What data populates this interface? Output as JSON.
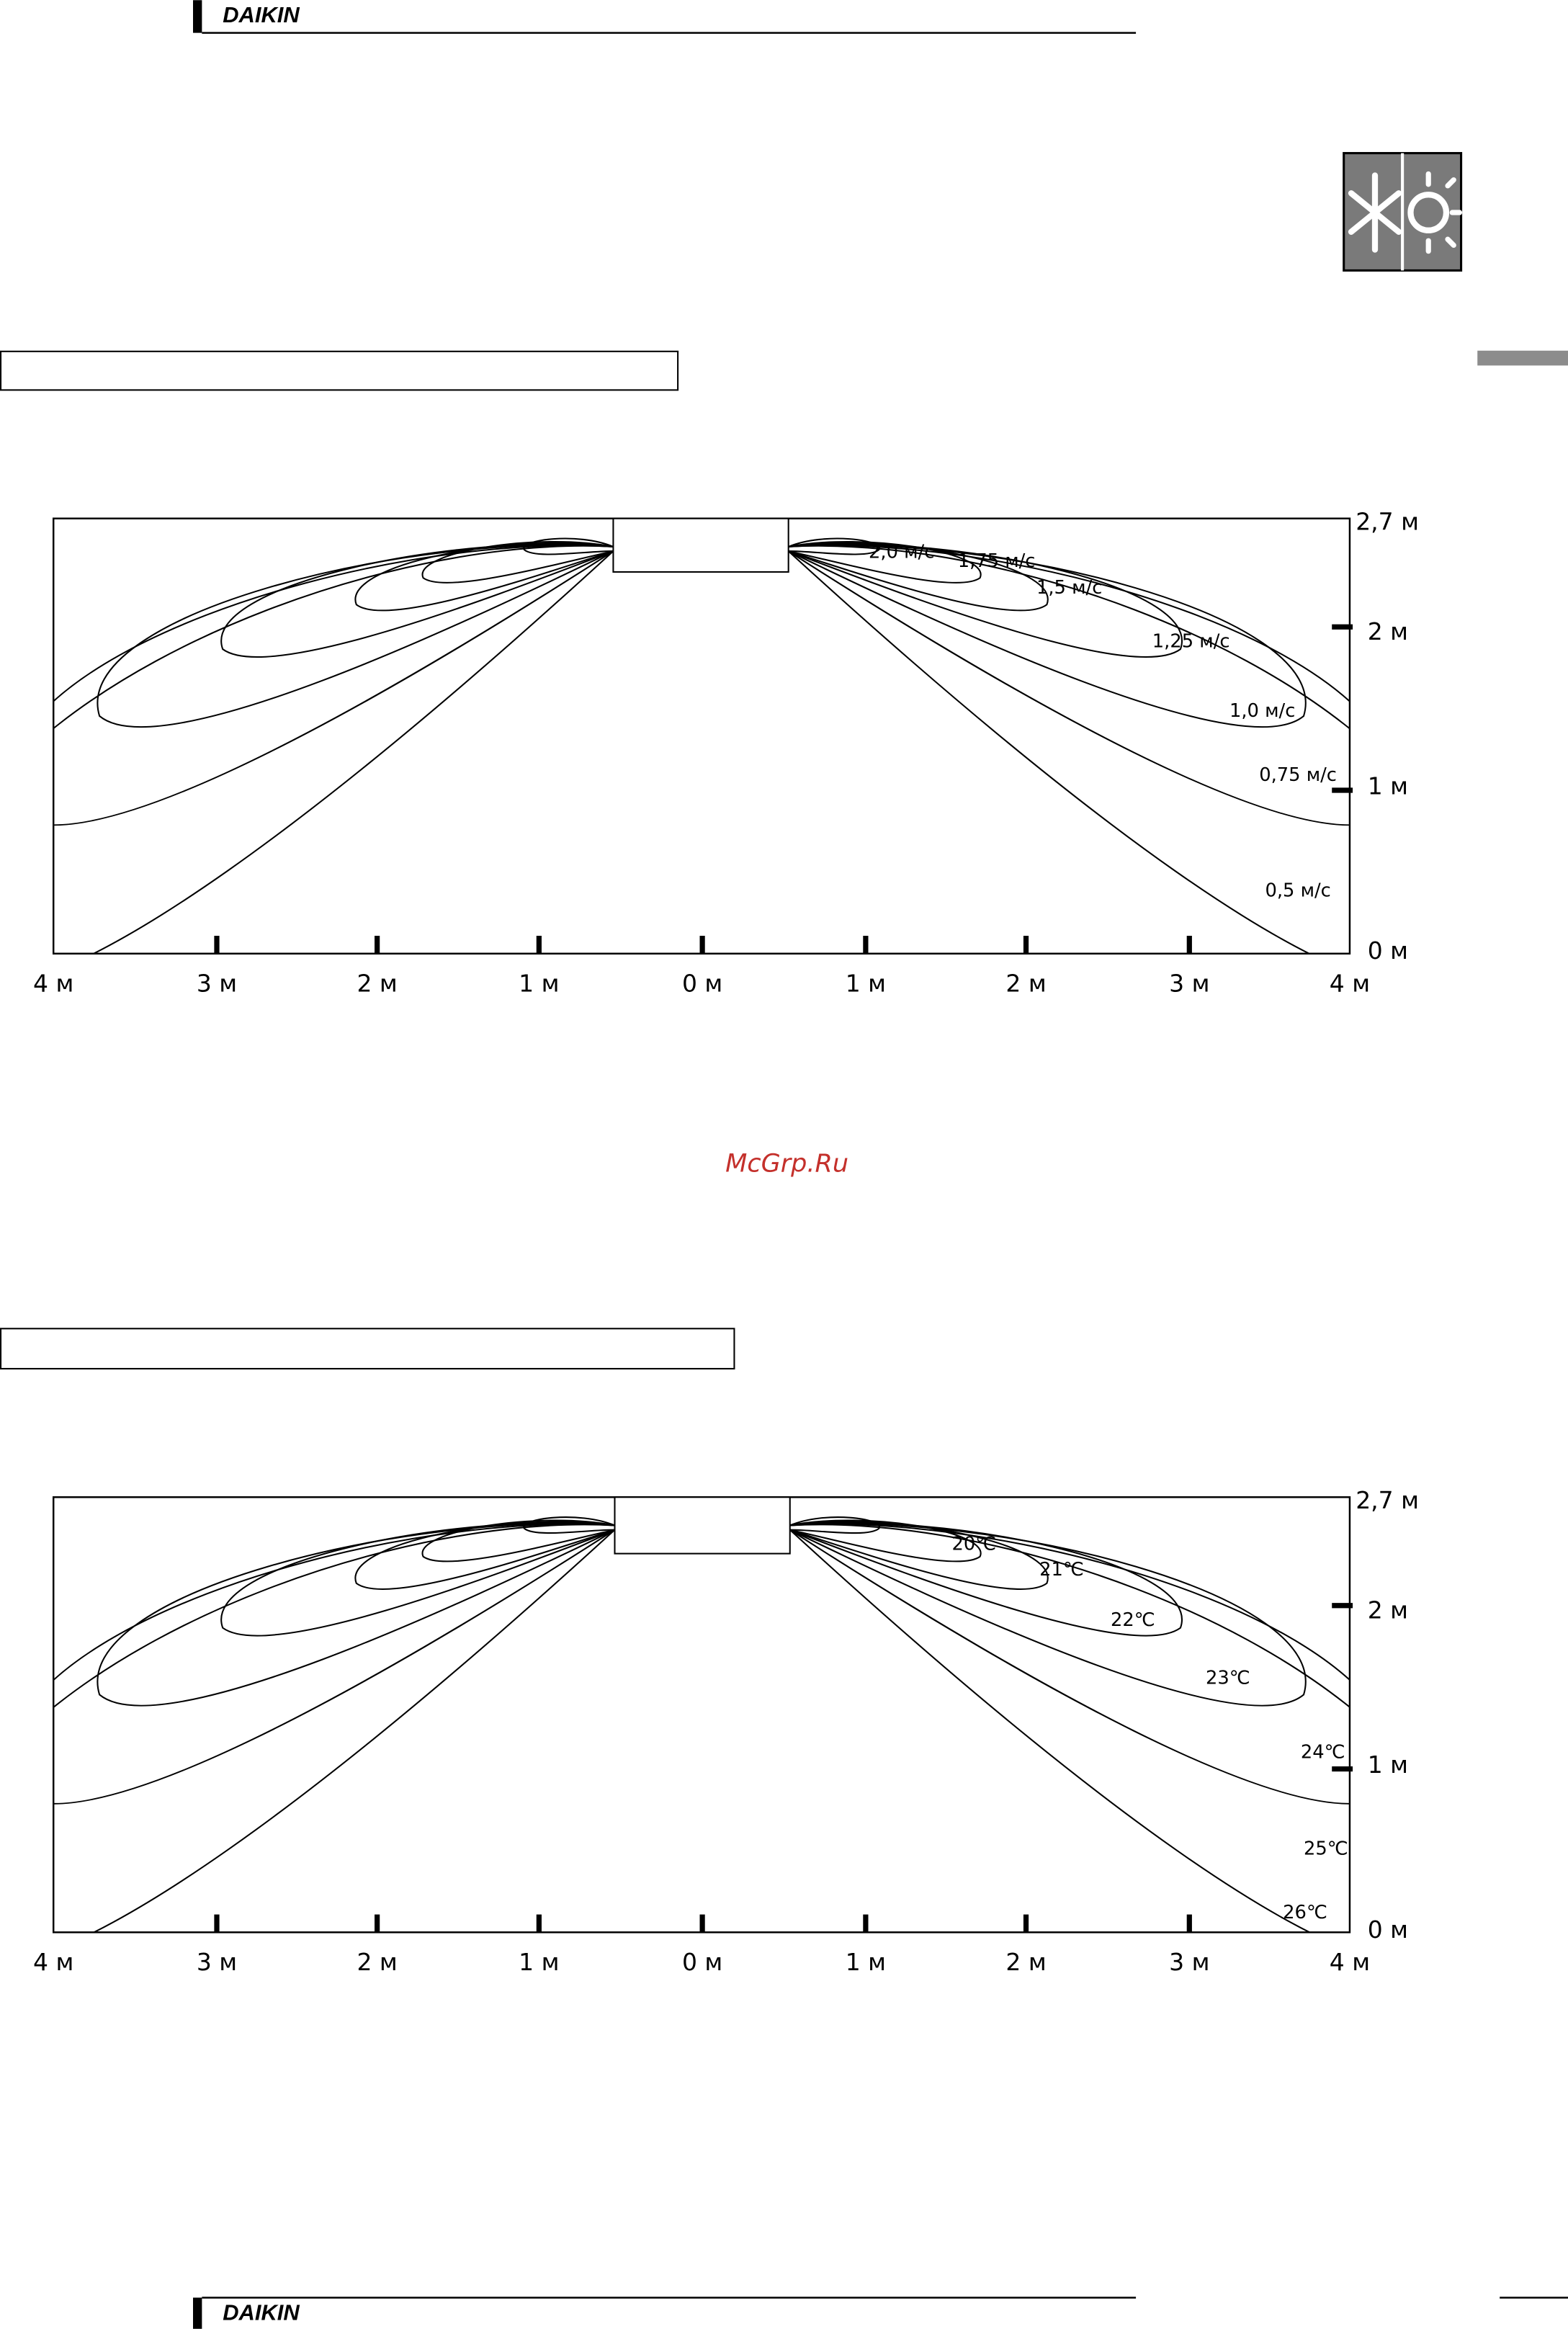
{
  "header": {
    "brand": "DAIKIN"
  },
  "watermark": "McGrp.Ru",
  "diagrams": [
    {
      "x_labels": [
        "4 м",
        "3 м",
        "2 м",
        "1 м",
        "0 м",
        "1 м",
        "2 м",
        "3 м",
        "4 м"
      ],
      "y_labels": [
        "2,7 м",
        "2 м",
        "1 м",
        "0 м"
      ],
      "contour_labels": [
        "2,0 м/с",
        "1,75 м/с",
        "1,5 м/с",
        "1,25 м/с",
        "1,0 м/с",
        "0,75 м/с",
        "0,5 м/с"
      ]
    },
    {
      "x_labels": [
        "4 м",
        "3 м",
        "2 м",
        "1 м",
        "0 м",
        "1 м",
        "2 м",
        "3 м",
        "4 м"
      ],
      "y_labels": [
        "2,7 м",
        "2 м",
        "1 м",
        "0 м"
      ],
      "contour_labels": [
        "20℃",
        "21℃",
        "22℃",
        "23℃",
        "24℃",
        "25℃",
        "26℃"
      ]
    }
  ],
  "footer": {
    "brand": "DAIKIN"
  }
}
